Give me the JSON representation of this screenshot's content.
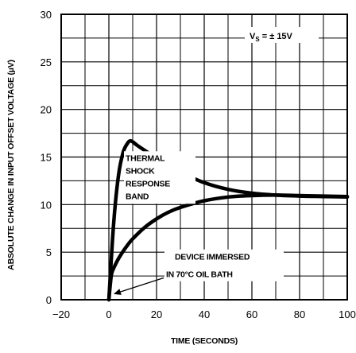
{
  "chart_data": {
    "type": "line",
    "title": "",
    "xlabel": "TIME (SECONDS)",
    "ylabel": "ABSOLUTE CHANGE IN INPUT OFFSET VOLTAGE (µV)",
    "xlim": [
      -20,
      100
    ],
    "ylim": [
      0,
      30
    ],
    "x_ticks": [
      -20,
      0,
      20,
      40,
      60,
      80,
      100
    ],
    "x_tick_labels": [
      "−20",
      "0",
      "20",
      "40",
      "60",
      "80",
      "100"
    ],
    "y_ticks": [
      0,
      5,
      10,
      15,
      20,
      25,
      30
    ],
    "y_tick_labels": [
      "0",
      "5",
      "10",
      "15",
      "20",
      "25",
      "30"
    ],
    "minor_grid": true,
    "grid": true,
    "legend": "Vs = ± 15V",
    "legend_parts": {
      "v": "V",
      "sub": "S",
      "rest": " = ± 15V"
    },
    "series": [
      {
        "name": "",
        "x": [
          0,
          2,
          4,
          6,
          8,
          9,
          10,
          12,
          15,
          20,
          25,
          30,
          40,
          50,
          60,
          70,
          80,
          90,
          100
        ],
        "values": [
          0,
          8,
          13,
          15.5,
          16.5,
          16.7,
          16.6,
          16.2,
          15.7,
          14.9,
          14.1,
          13.4,
          12.3,
          11.6,
          11.2,
          11.0,
          10.9,
          10.85,
          10.8
        ]
      },
      {
        "name": "",
        "x": [
          0,
          1,
          2,
          4,
          6,
          8,
          10,
          15,
          20,
          25,
          30,
          40,
          50,
          60,
          70,
          80,
          90,
          100
        ],
        "values": [
          0,
          2.5,
          3.3,
          4.3,
          5.1,
          5.8,
          6.4,
          7.6,
          8.5,
          9.2,
          9.7,
          10.4,
          10.8,
          10.95,
          11.0,
          10.95,
          10.9,
          10.85
        ]
      }
    ],
    "annotations": [
      {
        "lines": [
          "THERMAL",
          "SHOCK",
          "RESPONSE",
          "BAND"
        ]
      },
      {
        "lines": [
          "DEVICE IMMERSED",
          "IN 70°C OIL BATH"
        ]
      }
    ]
  }
}
